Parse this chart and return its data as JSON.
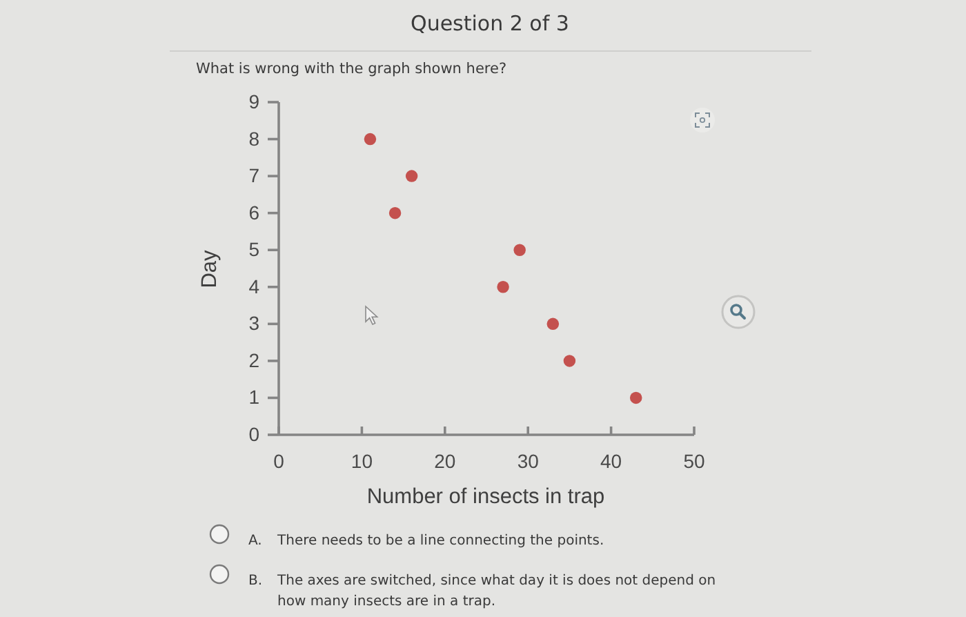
{
  "chart_data": {
    "type": "scatter",
    "title": "Question 2 of 3",
    "subtitle": "What is wrong with the graph shown here?",
    "xlabel": "Number of insects in trap",
    "ylabel": "Day",
    "x": [
      43,
      35,
      33,
      27,
      29,
      14,
      16,
      11
    ],
    "values": [
      1,
      2,
      3,
      4,
      5,
      6,
      7,
      8
    ],
    "color": "#c4514e",
    "marker": "circle",
    "xlim": [
      0,
      50
    ],
    "xticks": [
      0,
      10,
      20,
      30,
      40,
      50
    ],
    "ylim": [
      0,
      9
    ],
    "yticks": [
      0,
      1,
      2,
      3,
      4,
      5,
      6,
      7,
      8,
      9
    ],
    "annotations": [
      "A. There needs to be a line connecting the points.",
      "B. The axes are switched, since what day it is does not depend on how many insects are in a trap."
    ]
  }
}
